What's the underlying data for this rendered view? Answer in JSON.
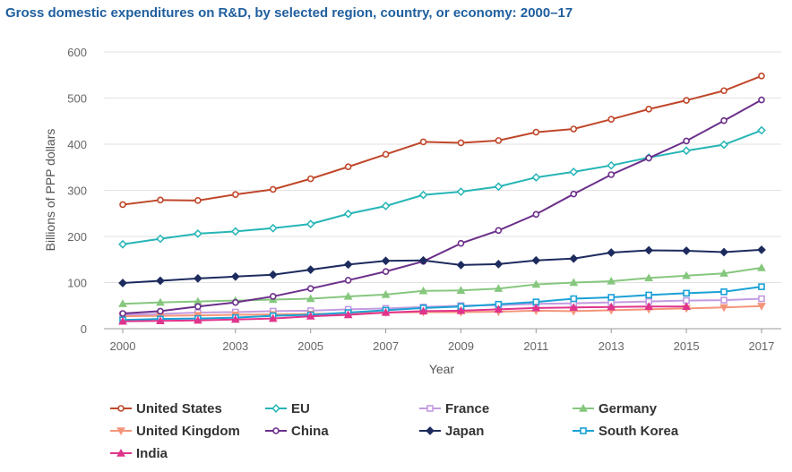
{
  "chart_data": {
    "type": "line",
    "title": "Gross domestic expenditures on R&D, by selected region, country, or economy: 2000–17",
    "xlabel": "Year",
    "ylabel": "Billions of PPP dollars",
    "x": [
      2000,
      2001,
      2002,
      2003,
      2004,
      2005,
      2006,
      2007,
      2008,
      2009,
      2010,
      2011,
      2012,
      2013,
      2014,
      2015,
      2016,
      2017
    ],
    "x_ticks": [
      2000,
      2003,
      2005,
      2007,
      2009,
      2011,
      2013,
      2015,
      2017
    ],
    "y_ticks": [
      0,
      100,
      200,
      300,
      400,
      500,
      600
    ],
    "ylim": [
      0,
      600
    ],
    "grid": true,
    "legend_position": "bottom",
    "series": [
      {
        "name": "United States",
        "color": "#c0472a",
        "marker": "circle",
        "values": [
          269,
          279,
          278,
          291,
          302,
          325,
          351,
          378,
          405,
          403,
          408,
          426,
          433,
          454,
          476,
          495,
          516,
          548
        ]
      },
      {
        "name": "EU",
        "color": "#26b5b6",
        "marker": "diamond",
        "values": [
          183,
          195,
          206,
          211,
          218,
          227,
          249,
          266,
          290,
          297,
          308,
          328,
          340,
          354,
          371,
          386,
          399,
          430
        ]
      },
      {
        "name": "France",
        "color": "#c39be0",
        "marker": "square-open",
        "values": [
          30,
          32,
          35,
          36,
          38,
          39,
          42,
          44,
          47,
          50,
          51,
          54,
          55,
          57,
          59,
          61,
          62,
          65
        ]
      },
      {
        "name": "Germany",
        "color": "#86c77e",
        "marker": "triangle-up",
        "values": [
          54,
          57,
          59,
          61,
          63,
          65,
          70,
          74,
          82,
          83,
          87,
          96,
          100,
          103,
          110,
          115,
          120,
          132
        ]
      },
      {
        "name": "United Kingdom",
        "color": "#f4957a",
        "marker": "triangle-down",
        "values": [
          27,
          28,
          29,
          30,
          31,
          32,
          33,
          35,
          36,
          36,
          37,
          39,
          38,
          40,
          42,
          44,
          46,
          49
        ]
      },
      {
        "name": "China",
        "color": "#6b2f8a",
        "marker": "circle",
        "values": [
          33,
          38,
          48,
          57,
          70,
          87,
          105,
          124,
          146,
          185,
          213,
          248,
          292,
          334,
          370,
          407,
          451,
          496
        ]
      },
      {
        "name": "Japan",
        "color": "#1d2b5e",
        "marker": "diamond-filled",
        "values": [
          99,
          104,
          109,
          113,
          117,
          128,
          139,
          147,
          148,
          138,
          140,
          148,
          152,
          165,
          170,
          169,
          166,
          171
        ]
      },
      {
        "name": "South Korea",
        "color": "#1aa1d6",
        "marker": "square",
        "values": [
          19,
          21,
          22,
          24,
          28,
          30,
          35,
          40,
          45,
          48,
          53,
          58,
          65,
          68,
          73,
          77,
          80,
          91
        ]
      },
      {
        "name": "India",
        "color": "#e0348c",
        "marker": "triangle-up",
        "values": [
          16,
          17,
          18,
          20,
          22,
          27,
          30,
          35,
          38,
          39,
          42,
          45,
          46,
          47,
          48,
          48,
          null,
          null
        ]
      }
    ]
  }
}
